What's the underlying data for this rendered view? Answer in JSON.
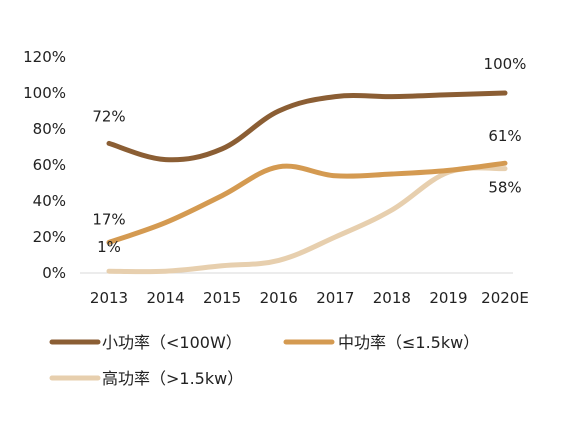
{
  "chart_data": {
    "type": "line",
    "title": "",
    "xlabel": "",
    "ylabel": "",
    "categories": [
      "2013",
      "2014",
      "2015",
      "2016",
      "2017",
      "2018",
      "2019",
      "2020E"
    ],
    "ylim": [
      0,
      120
    ],
    "y_ticks": [
      {
        "value": 0,
        "label": "0%"
      },
      {
        "value": 20,
        "label": "20%"
      },
      {
        "value": 40,
        "label": "40%"
      },
      {
        "value": 60,
        "label": "60%"
      },
      {
        "value": 80,
        "label": "80%"
      },
      {
        "value": 100,
        "label": "100%"
      },
      {
        "value": 120,
        "label": "120%"
      }
    ],
    "grid": false,
    "legend_position": "bottom",
    "series": [
      {
        "name": "小功率（<100W）",
        "color": "#8B5E34",
        "values": [
          72,
          63,
          69,
          90,
          98,
          98,
          99,
          100
        ]
      },
      {
        "name": "中功率（≤1.5kw）",
        "color": "#D49A51",
        "values": [
          17,
          28,
          43,
          59,
          54,
          55,
          57,
          61
        ]
      },
      {
        "name": "高功率（>1.5kw）",
        "color": "#E7CFAE",
        "values": [
          1,
          1,
          4,
          7,
          20,
          35,
          56,
          58
        ]
      }
    ],
    "data_labels": [
      {
        "series": 0,
        "index": 0,
        "text": "72%"
      },
      {
        "series": 0,
        "index": 7,
        "text": "100%"
      },
      {
        "series": 1,
        "index": 0,
        "text": "17%"
      },
      {
        "series": 1,
        "index": 7,
        "text": "61%"
      },
      {
        "series": 2,
        "index": 0,
        "text": "1%"
      },
      {
        "series": 2,
        "index": 7,
        "text": "58%"
      }
    ]
  }
}
